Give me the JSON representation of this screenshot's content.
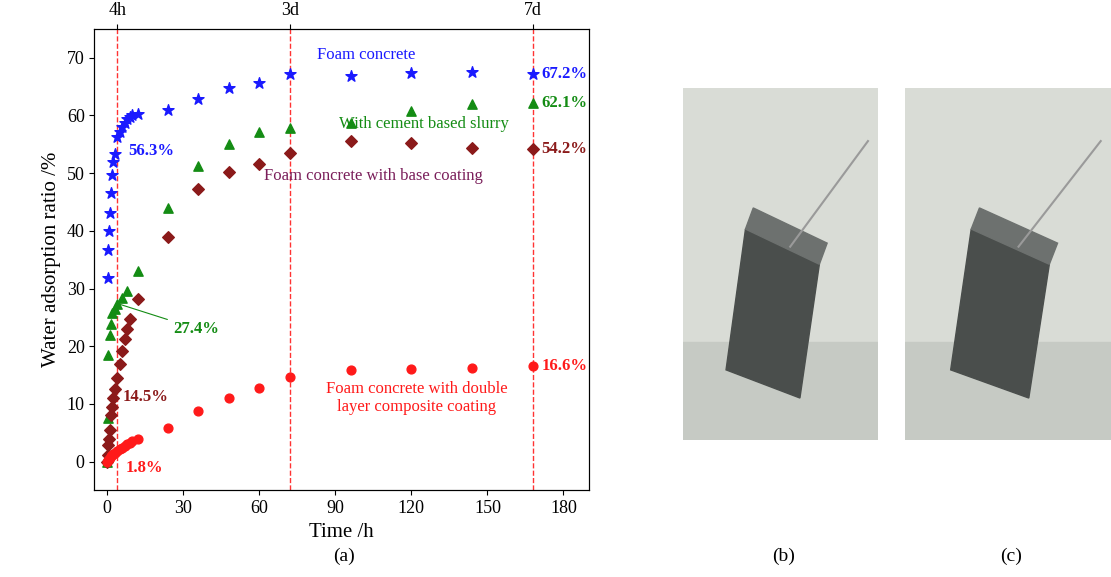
{
  "chart_data": {
    "type": "scatter",
    "x_label": "Time /h",
    "y_label": "Water adsorption ratio /%",
    "xlim": [
      -5,
      190
    ],
    "xticks": [
      0,
      30,
      60,
      90,
      120,
      150,
      180
    ],
    "ylim": [
      -5,
      75
    ],
    "yticks": [
      0,
      10,
      20,
      30,
      40,
      50,
      60,
      70
    ],
    "x2ticks": [
      {
        "value": 4,
        "label": "4h"
      },
      {
        "value": 72,
        "label": "3d"
      },
      {
        "value": 168,
        "label": "7d"
      }
    ],
    "grid": false,
    "series": [
      {
        "name": "Foam concrete",
        "color": "#1a1aff",
        "marker": "star",
        "x": [
          0.25,
          0.5,
          0.75,
          1,
          1.5,
          2,
          2.5,
          3,
          4,
          5,
          6,
          7,
          8,
          9,
          10,
          12,
          24,
          36,
          48,
          60,
          72,
          96,
          120,
          144,
          168
        ],
        "values": [
          31.8,
          36.6,
          40.0,
          43.1,
          46.6,
          49.6,
          51.9,
          53.3,
          56.3,
          57.1,
          58.0,
          58.7,
          59.3,
          59.7,
          60.0,
          60.3,
          60.9,
          62.8,
          64.7,
          65.6,
          67.2,
          66.9,
          67.3,
          67.5,
          67.2
        ]
      },
      {
        "name": "With cement based slurry",
        "color": "#148c14",
        "marker": "triangle",
        "x": [
          0,
          0.25,
          0.5,
          1,
          1.5,
          2,
          3,
          4,
          6,
          8,
          12,
          24,
          36,
          48,
          60,
          72,
          96,
          120,
          144,
          168
        ],
        "values": [
          0,
          7.5,
          18.4,
          22.0,
          23.9,
          25.7,
          26.5,
          27.4,
          28.4,
          29.5,
          33.0,
          44.0,
          51.3,
          55.0,
          57.2,
          57.9,
          58.7,
          60.8,
          62.0,
          62.1
        ]
      },
      {
        "name": "Foam concrete with base coating",
        "color": "#8b1a1a",
        "label_color": "#7a1e5a",
        "marker": "diamond",
        "x": [
          0,
          0.25,
          0.5,
          0.75,
          1,
          1.5,
          2,
          2.5,
          3,
          4,
          5,
          6,
          7,
          8,
          9,
          12,
          24,
          36,
          48,
          60,
          72,
          96,
          120,
          144,
          168
        ],
        "values": [
          0,
          1.2,
          2.8,
          3.9,
          5.5,
          8.0,
          9.5,
          11.0,
          12.5,
          14.5,
          17.0,
          19.2,
          21.2,
          23.0,
          24.8,
          28.2,
          38.9,
          47.2,
          50.2,
          51.5,
          53.4,
          55.5,
          55.2,
          54.3,
          54.2
        ]
      },
      {
        "name": "Foam concrete with double\nlayer composite coating",
        "color": "#ff1a1a",
        "marker": "circle",
        "x": [
          0,
          0.5,
          1,
          1.5,
          2,
          2.5,
          3,
          4,
          5,
          6,
          7,
          8,
          9,
          10,
          12,
          24,
          36,
          48,
          60,
          72,
          96,
          120,
          144,
          168
        ],
        "values": [
          0,
          0.3,
          0.6,
          0.9,
          1.1,
          1.3,
          1.5,
          1.8,
          2.1,
          2.4,
          2.7,
          3.0,
          3.2,
          3.5,
          3.9,
          5.9,
          8.7,
          11.0,
          12.8,
          14.7,
          15.9,
          16.0,
          16.2,
          16.6
        ]
      }
    ],
    "annotations": [
      {
        "series": 0,
        "x": 4,
        "text": "56.3%"
      },
      {
        "series": 1,
        "x": 4,
        "text": "27.4%"
      },
      {
        "series": 2,
        "x": 4,
        "text": "14.5%"
      },
      {
        "series": 3,
        "x": 4,
        "text": "1.8%"
      },
      {
        "series": 0,
        "x": 168,
        "text": "67.2%"
      },
      {
        "series": 1,
        "x": 168,
        "text": "62.1%"
      },
      {
        "series": 2,
        "x": 168,
        "text": "54.2%"
      },
      {
        "series": 3,
        "x": 168,
        "text": "16.6%"
      }
    ]
  },
  "panel_labels": [
    "(a)",
    "(b)",
    "(c)"
  ]
}
